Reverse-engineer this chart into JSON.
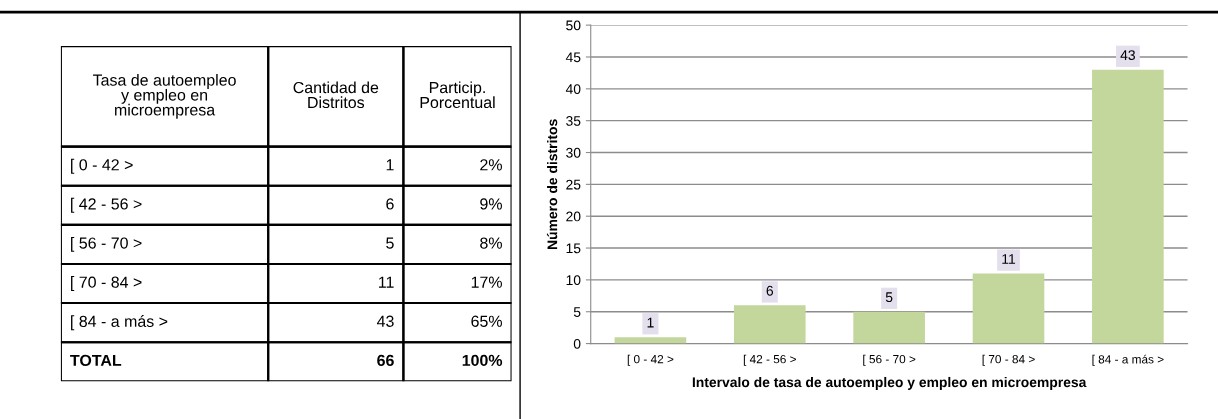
{
  "chart_data": [
    {
      "type": "other",
      "annotations": [
        "Tasa de autoempleo\ny empleo en\nmicroempresa",
        "Cantidad de\nDistritos",
        "Particip.\nPorcentual",
        "[ 0 - 42 >",
        "1",
        "2%",
        "[ 42 - 56 >",
        "6",
        "9%",
        "[ 56 - 70 >",
        "5",
        "8%",
        "[ 70 - 84 >",
        "11",
        "17%",
        "[ 84 - a más >",
        "43",
        "65%",
        "TOTAL",
        "66",
        "100%"
      ]
    },
    {
      "type": "bar",
      "categories": [
        "[ 0 - 42 >",
        "[ 42 - 56 >",
        "[ 56 - 70 >",
        "[ 70 - 84 >",
        "[ 84 - a más >"
      ],
      "values": [
        1,
        6,
        5,
        11,
        43
      ],
      "color": "#c3d69b",
      "ylim": [
        0,
        50
      ],
      "yticks": [
        0,
        5,
        10,
        15,
        20,
        25,
        30,
        35,
        40,
        45,
        50
      ],
      "grid": "y",
      "data_labels": true,
      "xlabel": "Intervalo de tasa de autoempleo y empleo en microempresa",
      "ylabel": "Número de distritos"
    }
  ]
}
